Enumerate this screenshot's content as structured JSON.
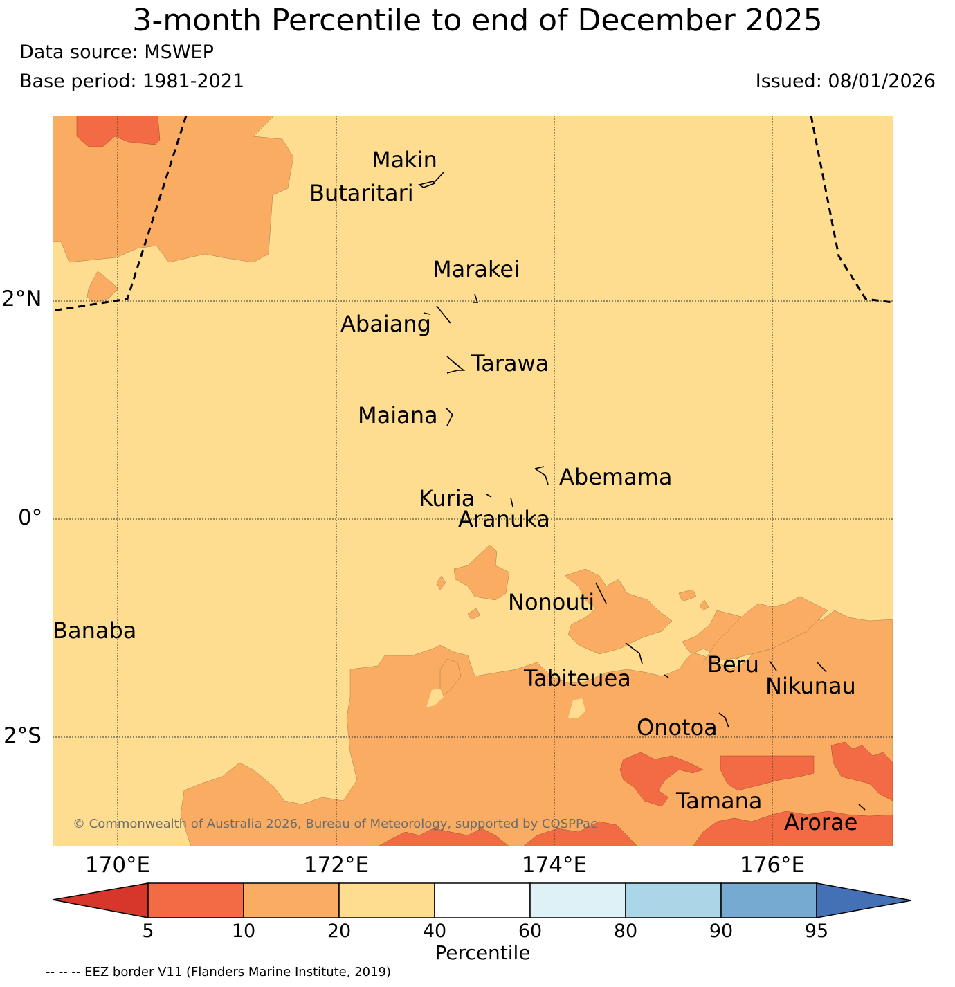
{
  "title": "3-month Percentile to end of December 2025",
  "data_source": "Data source: MSWEP",
  "base_period": "Base period: 1981-2021",
  "issued": "Issued: 08/01/2026",
  "colors": {
    "p5_10": "#f26b45",
    "p10_20": "#f9ac62",
    "p20_40": "#fedd90",
    "p40_60": "#ffffff",
    "p60_80": "#def1f7",
    "p80_90": "#abd6e7",
    "p90_95": "#76aad1",
    "above_95": "#4471b5",
    "below_5": "#d7362b"
  },
  "map": {
    "lat_labels": [
      "2°N",
      "0°",
      "2°S"
    ],
    "lon_labels": [
      "170°E",
      "172°E",
      "174°E",
      "176°E"
    ],
    "islands": [
      "Makin",
      "Butaritari",
      "Marakei",
      "Abaiang",
      "Tarawa",
      "Maiana",
      "Abemama",
      "Kuria",
      "Aranuka",
      "Nonouti",
      "Banaba",
      "Tabiteuea",
      "Beru",
      "Nikunau",
      "Onotoa",
      "Tamana",
      "Arorae"
    ],
    "copyright": "© Commonwealth of Australia 2026, Bureau of Meteorology, supported by COSPPac"
  },
  "colorbar": {
    "ticks": [
      "5",
      "10",
      "20",
      "40",
      "60",
      "80",
      "90",
      "95"
    ],
    "title": "Percentile"
  },
  "footnote": "-- -- -- EEZ border V11 (Flanders Marine Institute, 2019)"
}
